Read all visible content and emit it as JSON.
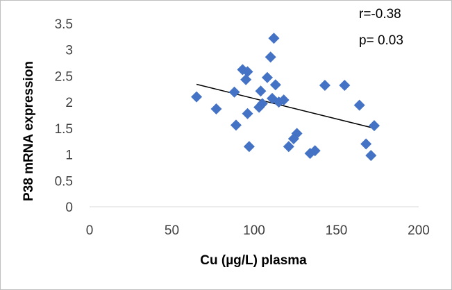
{
  "chart_data": {
    "type": "scatter",
    "title": "",
    "xlabel": "Cu (µg/L) plasma",
    "ylabel": "P38 mRNA expression",
    "xlim": [
      0,
      200
    ],
    "ylim": [
      0,
      3.5
    ],
    "x_ticks": [
      0,
      50,
      100,
      150,
      200
    ],
    "y_ticks": [
      0,
      0.5,
      1,
      1.5,
      2,
      2.5,
      3,
      3.5
    ],
    "x_tick_labels": [
      "0",
      "50",
      "100",
      "150",
      "200"
    ],
    "y_tick_labels": [
      "0",
      "0.5",
      "1",
      "1.5",
      "2",
      "2.5",
      "3",
      "3.5"
    ],
    "grid": false,
    "series": [
      {
        "name": "P38",
        "marker": "diamond",
        "color": "#4472c4",
        "points": [
          [
            65,
            2.1
          ],
          [
            77,
            1.87
          ],
          [
            88,
            2.19
          ],
          [
            89,
            1.56
          ],
          [
            93,
            2.62
          ],
          [
            95,
            2.43
          ],
          [
            96,
            2.58
          ],
          [
            96,
            1.78
          ],
          [
            97,
            1.15
          ],
          [
            103,
            1.9
          ],
          [
            104,
            2.21
          ],
          [
            105,
            1.97
          ],
          [
            108,
            2.47
          ],
          [
            110,
            2.86
          ],
          [
            111,
            2.07
          ],
          [
            112,
            3.22
          ],
          [
            113,
            2.33
          ],
          [
            115,
            2.0
          ],
          [
            118,
            2.04
          ],
          [
            121,
            1.15
          ],
          [
            124,
            1.3
          ],
          [
            126,
            1.4
          ],
          [
            134,
            1.02
          ],
          [
            137,
            1.07
          ],
          [
            143,
            2.32
          ],
          [
            155,
            2.32
          ],
          [
            164,
            1.94
          ],
          [
            168,
            1.2
          ],
          [
            171,
            0.98
          ],
          [
            173,
            1.55
          ]
        ]
      }
    ],
    "trendline": {
      "type": "linear",
      "color": "#000000",
      "x": [
        65,
        173
      ],
      "y": [
        2.34,
        1.5
      ]
    },
    "annotations": [
      "r=-0.38",
      "p= 0.03"
    ]
  }
}
